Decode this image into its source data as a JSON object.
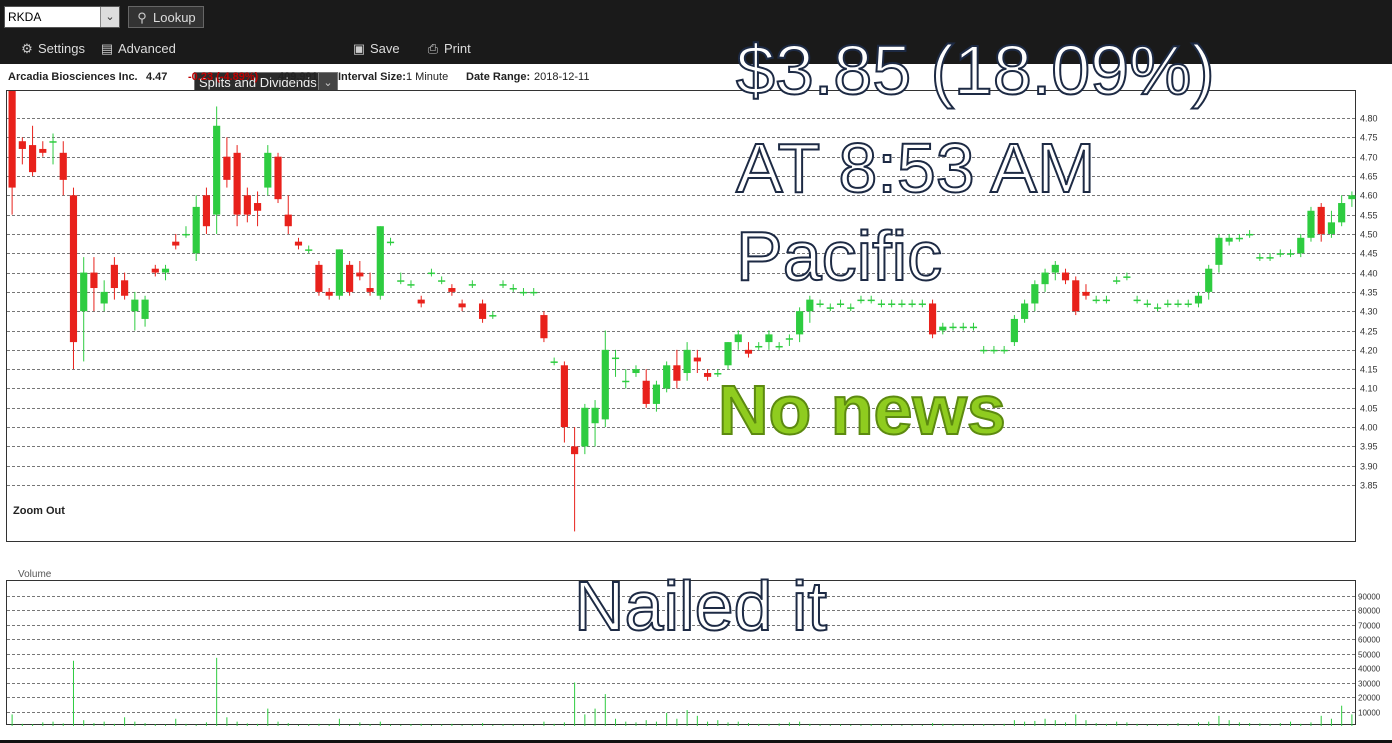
{
  "toolbar": {
    "symbol_value": "RKDA",
    "lookup_label": "Lookup",
    "settings_label": "Settings",
    "advanced_label": "Advanced",
    "splits_select": "Splits and Dividends",
    "save_label": "Save",
    "print_label": "Print"
  },
  "info": {
    "company": "Arcadia Biosciences Inc.",
    "price": "4.47",
    "change": "-0.23 (-4.89%)",
    "volume": "409,991",
    "interval_label": "Interval Size:",
    "interval_value": "1 Minute",
    "range_label": "Date Range:",
    "range_value": "2018-12-11"
  },
  "chart": {
    "zoom_out": "Zoom Out",
    "volume_label": "Volume",
    "up_color": "#2ecc40",
    "down_color": "#e8211b"
  },
  "overlay": {
    "line1": "$3.85 (18.09%)",
    "line2": "AT 8:53 AM",
    "line3": "Pacific",
    "line4": "No news",
    "line5": "Nailed it"
  },
  "chart_data": {
    "type": "candlestick",
    "ylim": [
      3.7,
      4.87
    ],
    "yticks": [
      4.8,
      4.75,
      4.7,
      4.65,
      4.6,
      4.55,
      4.5,
      4.45,
      4.4,
      4.35,
      4.3,
      4.25,
      4.2,
      4.15,
      4.1,
      4.05,
      4.0,
      3.95,
      3.9,
      3.85
    ],
    "candles": [
      [
        4.88,
        4.88,
        4.55,
        4.62
      ],
      [
        4.74,
        4.75,
        4.68,
        4.72
      ],
      [
        4.73,
        4.78,
        4.65,
        4.66
      ],
      [
        4.72,
        4.74,
        4.7,
        4.71
      ],
      [
        4.74,
        4.76,
        4.68,
        4.74
      ],
      [
        4.71,
        4.74,
        4.6,
        4.64
      ],
      [
        4.6,
        4.62,
        4.15,
        4.22
      ],
      [
        4.3,
        4.44,
        4.17,
        4.4
      ],
      [
        4.4,
        4.44,
        4.3,
        4.36
      ],
      [
        4.32,
        4.38,
        4.3,
        4.35
      ],
      [
        4.42,
        4.44,
        4.33,
        4.36
      ],
      [
        4.38,
        4.4,
        4.33,
        4.34
      ],
      [
        4.3,
        4.35,
        4.25,
        4.33
      ],
      [
        4.28,
        4.34,
        4.26,
        4.33
      ],
      [
        4.41,
        4.42,
        4.39,
        4.4
      ],
      [
        4.4,
        4.42,
        4.38,
        4.41
      ],
      [
        4.48,
        4.5,
        4.46,
        4.47
      ],
      [
        4.5,
        4.52,
        4.49,
        4.5
      ],
      [
        4.45,
        4.6,
        4.43,
        4.57
      ],
      [
        4.6,
        4.62,
        4.5,
        4.52
      ],
      [
        4.55,
        4.83,
        4.5,
        4.78
      ],
      [
        4.7,
        4.75,
        4.62,
        4.64
      ],
      [
        4.71,
        4.73,
        4.52,
        4.55
      ],
      [
        4.6,
        4.62,
        4.53,
        4.55
      ],
      [
        4.58,
        4.61,
        4.52,
        4.56
      ],
      [
        4.62,
        4.73,
        4.6,
        4.71
      ],
      [
        4.7,
        4.71,
        4.58,
        4.59
      ],
      [
        4.55,
        4.6,
        4.5,
        4.52
      ],
      [
        4.48,
        4.49,
        4.46,
        4.47
      ],
      [
        4.46,
        4.47,
        4.45,
        4.46
      ],
      [
        4.42,
        4.43,
        4.34,
        4.35
      ],
      [
        4.35,
        4.36,
        4.33,
        4.34
      ],
      [
        4.34,
        4.46,
        4.33,
        4.46
      ],
      [
        4.42,
        4.43,
        4.34,
        4.35
      ],
      [
        4.4,
        4.43,
        4.38,
        4.39
      ],
      [
        4.36,
        4.4,
        4.34,
        4.35
      ],
      [
        4.34,
        4.52,
        4.33,
        4.52
      ],
      [
        4.48,
        4.49,
        4.47,
        4.48
      ],
      [
        4.38,
        4.4,
        4.37,
        4.38
      ],
      [
        4.37,
        4.38,
        4.36,
        4.37
      ],
      [
        4.33,
        4.34,
        4.31,
        4.32
      ],
      [
        4.4,
        4.41,
        4.39,
        4.4
      ],
      [
        4.38,
        4.39,
        4.37,
        4.38
      ],
      [
        4.36,
        4.37,
        4.34,
        4.35
      ],
      [
        4.32,
        4.33,
        4.3,
        4.31
      ],
      [
        4.37,
        4.38,
        4.36,
        4.37
      ],
      [
        4.32,
        4.33,
        4.27,
        4.28
      ],
      [
        4.29,
        4.3,
        4.28,
        4.29
      ],
      [
        4.37,
        4.38,
        4.36,
        4.37
      ],
      [
        4.36,
        4.37,
        4.35,
        4.36
      ],
      [
        4.35,
        4.36,
        4.34,
        4.35
      ],
      [
        4.35,
        4.36,
        4.34,
        4.35
      ],
      [
        4.29,
        4.3,
        4.22,
        4.23
      ],
      [
        4.17,
        4.18,
        4.16,
        4.17
      ],
      [
        4.16,
        4.17,
        3.96,
        4.0
      ],
      [
        3.95,
        4.0,
        3.73,
        3.93
      ],
      [
        3.95,
        4.06,
        3.93,
        4.05
      ],
      [
        4.01,
        4.07,
        3.95,
        4.05
      ],
      [
        4.02,
        4.25,
        4.0,
        4.2
      ],
      [
        4.18,
        4.2,
        4.13,
        4.18
      ],
      [
        4.12,
        4.15,
        4.1,
        4.12
      ],
      [
        4.14,
        4.16,
        4.13,
        4.15
      ],
      [
        4.12,
        4.15,
        4.05,
        4.06
      ],
      [
        4.06,
        4.12,
        4.04,
        4.11
      ],
      [
        4.1,
        4.17,
        4.09,
        4.16
      ],
      [
        4.16,
        4.2,
        4.1,
        4.12
      ],
      [
        4.14,
        4.22,
        4.12,
        4.2
      ],
      [
        4.18,
        4.2,
        4.14,
        4.17
      ],
      [
        4.14,
        4.15,
        4.12,
        4.13
      ],
      [
        4.14,
        4.15,
        4.13,
        4.14
      ],
      [
        4.16,
        4.22,
        4.15,
        4.22
      ],
      [
        4.22,
        4.25,
        4.2,
        4.24
      ],
      [
        4.2,
        4.22,
        4.18,
        4.19
      ],
      [
        4.21,
        4.22,
        4.2,
        4.21
      ],
      [
        4.22,
        4.25,
        4.2,
        4.24
      ],
      [
        4.21,
        4.22,
        4.2,
        4.21
      ],
      [
        4.23,
        4.24,
        4.21,
        4.23
      ],
      [
        4.24,
        4.31,
        4.22,
        4.3
      ],
      [
        4.3,
        4.34,
        4.27,
        4.33
      ],
      [
        4.32,
        4.33,
        4.31,
        4.32
      ],
      [
        4.31,
        4.32,
        4.3,
        4.31
      ],
      [
        4.32,
        4.33,
        4.31,
        4.32
      ],
      [
        4.31,
        4.32,
        4.3,
        4.31
      ],
      [
        4.33,
        4.34,
        4.32,
        4.33
      ],
      [
        4.33,
        4.34,
        4.32,
        4.33
      ],
      [
        4.32,
        4.33,
        4.31,
        4.32
      ],
      [
        4.32,
        4.33,
        4.31,
        4.32
      ],
      [
        4.32,
        4.33,
        4.31,
        4.32
      ],
      [
        4.32,
        4.33,
        4.31,
        4.32
      ],
      [
        4.32,
        4.33,
        4.31,
        4.32
      ],
      [
        4.32,
        4.33,
        4.23,
        4.24
      ],
      [
        4.25,
        4.27,
        4.24,
        4.26
      ],
      [
        4.26,
        4.27,
        4.25,
        4.26
      ],
      [
        4.26,
        4.27,
        4.25,
        4.26
      ],
      [
        4.26,
        4.27,
        4.25,
        4.26
      ],
      [
        4.2,
        4.21,
        4.19,
        4.2
      ],
      [
        4.2,
        4.21,
        4.19,
        4.2
      ],
      [
        4.2,
        4.21,
        4.19,
        4.2
      ],
      [
        4.22,
        4.29,
        4.21,
        4.28
      ],
      [
        4.28,
        4.33,
        4.27,
        4.32
      ],
      [
        4.32,
        4.38,
        4.3,
        4.37
      ],
      [
        4.37,
        4.41,
        4.35,
        4.4
      ],
      [
        4.4,
        4.43,
        4.38,
        4.42
      ],
      [
        4.4,
        4.41,
        4.37,
        4.38
      ],
      [
        4.38,
        4.39,
        4.29,
        4.3
      ],
      [
        4.35,
        4.37,
        4.33,
        4.34
      ],
      [
        4.33,
        4.34,
        4.32,
        4.33
      ],
      [
        4.33,
        4.34,
        4.32,
        4.33
      ],
      [
        4.38,
        4.39,
        4.37,
        4.38
      ],
      [
        4.39,
        4.4,
        4.38,
        4.39
      ],
      [
        4.33,
        4.34,
        4.32,
        4.33
      ],
      [
        4.32,
        4.33,
        4.31,
        4.32
      ],
      [
        4.31,
        4.32,
        4.3,
        4.31
      ],
      [
        4.32,
        4.33,
        4.31,
        4.32
      ],
      [
        4.32,
        4.33,
        4.31,
        4.32
      ],
      [
        4.32,
        4.33,
        4.31,
        4.32
      ],
      [
        4.32,
        4.35,
        4.31,
        4.34
      ],
      [
        4.35,
        4.42,
        4.33,
        4.41
      ],
      [
        4.42,
        4.5,
        4.4,
        4.49
      ],
      [
        4.48,
        4.5,
        4.47,
        4.49
      ],
      [
        4.49,
        4.5,
        4.48,
        4.49
      ],
      [
        4.5,
        4.51,
        4.49,
        4.5
      ],
      [
        4.44,
        4.45,
        4.43,
        4.44
      ],
      [
        4.44,
        4.45,
        4.43,
        4.44
      ],
      [
        4.45,
        4.46,
        4.44,
        4.45
      ],
      [
        4.45,
        4.46,
        4.44,
        4.45
      ],
      [
        4.45,
        4.5,
        4.44,
        4.49
      ],
      [
        4.49,
        4.57,
        4.48,
        4.56
      ],
      [
        4.57,
        4.58,
        4.48,
        4.5
      ],
      [
        4.5,
        4.56,
        4.49,
        4.53
      ],
      [
        4.53,
        4.6,
        4.52,
        4.58
      ],
      [
        4.59,
        4.61,
        4.57,
        4.6
      ]
    ],
    "volume_ylim": [
      0,
      100000
    ],
    "volume_yticks": [
      "90000",
      "80000",
      "70000",
      "60000",
      "50000",
      "40000",
      "30000",
      "20000",
      "10000"
    ],
    "volume": [
      8000,
      1500,
      1200,
      2500,
      3000,
      1800,
      45000,
      4000,
      2000,
      3000,
      1500,
      6000,
      3000,
      2000,
      1200,
      1000,
      5000,
      1500,
      1000,
      2500,
      47000,
      6000,
      3000,
      1800,
      1500,
      12000,
      3000,
      2000,
      800,
      1200,
      1500,
      1000,
      5000,
      800,
      2500,
      1200,
      3000,
      900,
      800,
      1200,
      1500,
      700,
      1000,
      1500,
      800,
      1000,
      2000,
      800,
      1200,
      1000,
      800,
      700,
      3000,
      1500,
      2500,
      30000,
      8000,
      12000,
      22000,
      5000,
      3000,
      2500,
      4000,
      3000,
      9000,
      5000,
      11000,
      7000,
      3000,
      4000,
      2500,
      3000,
      2000,
      1500,
      1500,
      1800,
      2500,
      3000,
      1500,
      1000,
      900,
      1000,
      800,
      900,
      1200,
      1000,
      800,
      700,
      900,
      800,
      2000,
      1500,
      1200,
      1000,
      800,
      1200,
      900,
      1500,
      4000,
      3000,
      3500,
      5000,
      4000,
      2500,
      8000,
      4000,
      2000,
      1500,
      3000,
      2500,
      1500,
      1000,
      1200,
      1500,
      2000,
      1000,
      2500,
      3000,
      7000,
      4000,
      2500,
      2000,
      1800,
      1500,
      2000,
      3000,
      1500,
      2500,
      7000,
      5000,
      14000,
      8000
    ]
  }
}
